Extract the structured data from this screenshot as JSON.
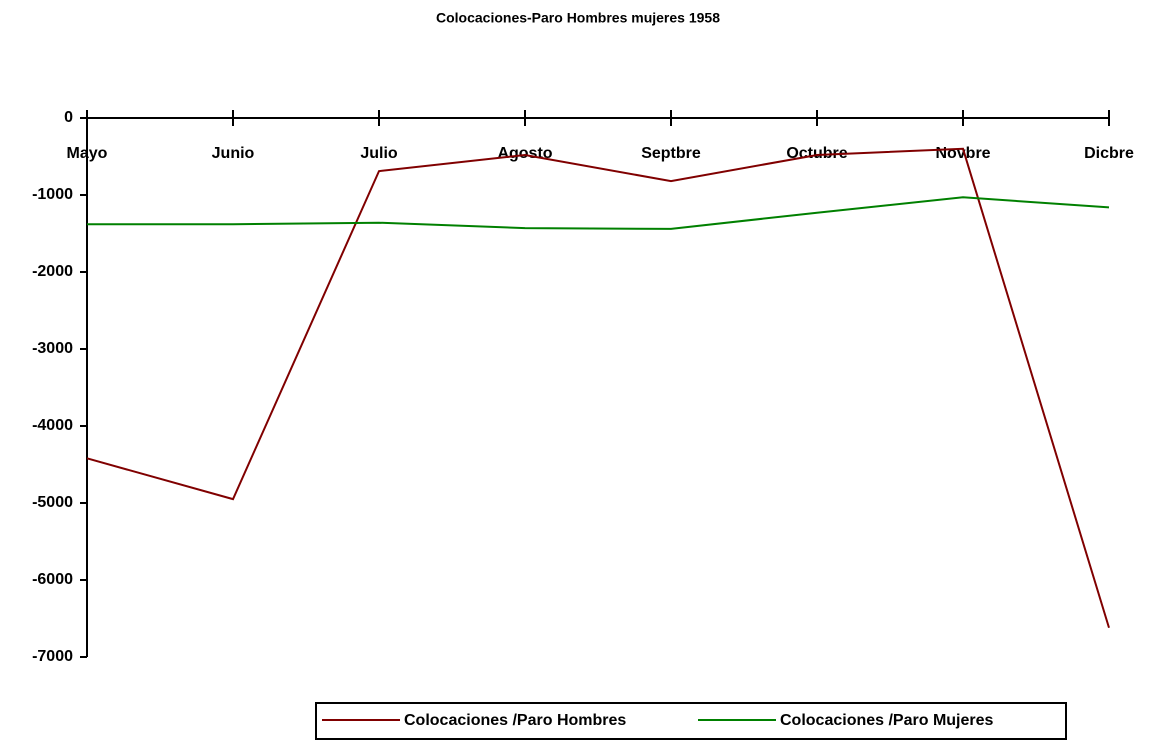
{
  "chart_data": {
    "type": "line",
    "title": "Colocaciones-Paro Hombres  mujeres 1958",
    "categories": [
      "Mayo",
      "Junio",
      "Julio",
      "Agosto",
      "Septbre",
      "Octubre",
      "Novbre",
      "Dicbre"
    ],
    "series": [
      {
        "name": "Colocaciones /Paro Hombres",
        "color": "#800000",
        "values": [
          -4420,
          -4950,
          -690,
          -480,
          -820,
          -480,
          -400,
          -6620
        ]
      },
      {
        "name": "Colocaciones /Paro Mujeres",
        "color": "#008000",
        "values": [
          -1380,
          -1380,
          -1360,
          -1430,
          -1440,
          -1230,
          -1030,
          -1160
        ]
      }
    ],
    "ylim": [
      -7000,
      0
    ],
    "yticks": [
      0,
      -1000,
      -2000,
      -3000,
      -4000,
      -5000,
      -6000,
      -7000
    ],
    "grid": false,
    "legend": "bottom"
  }
}
